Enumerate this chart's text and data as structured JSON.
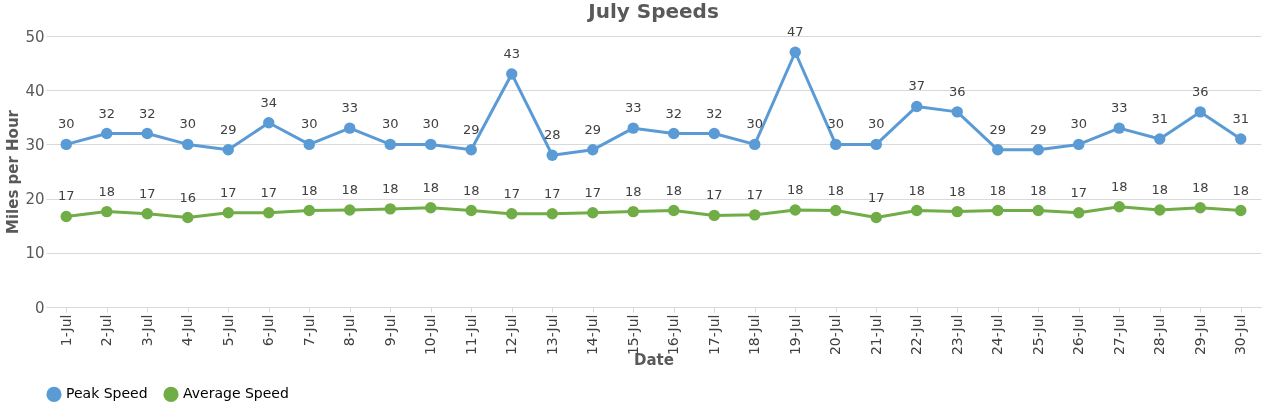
{
  "chart_data": {
    "type": "line",
    "title": "July Speeds",
    "xlabel": "Date",
    "ylabel": "Miles per Hour",
    "categories": [
      "1-Jul",
      "2-Jul",
      "3-Jul",
      "4-Jul",
      "5-Jul",
      "6-Jul",
      "7-Jul",
      "8-Jul",
      "9-Jul",
      "10-Jul",
      "11-Jul",
      "12-Jul",
      "13-Jul",
      "14-Jul",
      "15-Jul",
      "16-Jul",
      "17-Jul",
      "18-Jul",
      "19-Jul",
      "20-Jul",
      "21-Jul",
      "22-Jul",
      "23-Jul",
      "24-Jul",
      "25-Jul",
      "26-Jul",
      "27-Jul",
      "28-Jul",
      "29-Jul",
      "30-Jul"
    ],
    "series": [
      {
        "name": "Peak Speed",
        "color": "#5b9bd5",
        "values": [
          30,
          32,
          32,
          30,
          29,
          34,
          30,
          33,
          30,
          30,
          29,
          43,
          28,
          29,
          33,
          32,
          32,
          30,
          47,
          30,
          30,
          37,
          36,
          29,
          29,
          30,
          33,
          31,
          36,
          31
        ],
        "value_labels": [
          "30",
          "32",
          "32",
          "30",
          "29",
          "34",
          "30",
          "33",
          "30",
          "30",
          "29",
          "43",
          "28",
          "29",
          "33",
          "32",
          "32",
          "30",
          "47",
          "30",
          "30",
          "37",
          "36",
          "29",
          "29",
          "30",
          "33",
          "31",
          "36",
          "31"
        ]
      },
      {
        "name": "Average Speed",
        "color": "#70ad47",
        "values": [
          16.7,
          17.6,
          17.2,
          16.5,
          17.4,
          17.4,
          17.8,
          17.9,
          18.1,
          18.3,
          17.8,
          17.2,
          17.2,
          17.4,
          17.6,
          17.8,
          16.9,
          17.0,
          17.9,
          17.8,
          16.5,
          17.8,
          17.6,
          17.8,
          17.8,
          17.4,
          18.5,
          17.9,
          18.3,
          17.8
        ],
        "value_labels": [
          "17",
          "18",
          "17",
          "16",
          "17",
          "17",
          "18",
          "18",
          "18",
          "18",
          "18",
          "17",
          "17",
          "17",
          "18",
          "18",
          "17",
          "17",
          "18",
          "18",
          "17",
          "18",
          "18",
          "18",
          "18",
          "17",
          "18",
          "18",
          "18",
          "18"
        ]
      }
    ],
    "ylim": [
      0,
      50
    ],
    "yticks": [
      0,
      10,
      20,
      30,
      40,
      50
    ],
    "grid": "y",
    "legend": "bottom",
    "marker": "circle",
    "line_style": "solid"
  }
}
